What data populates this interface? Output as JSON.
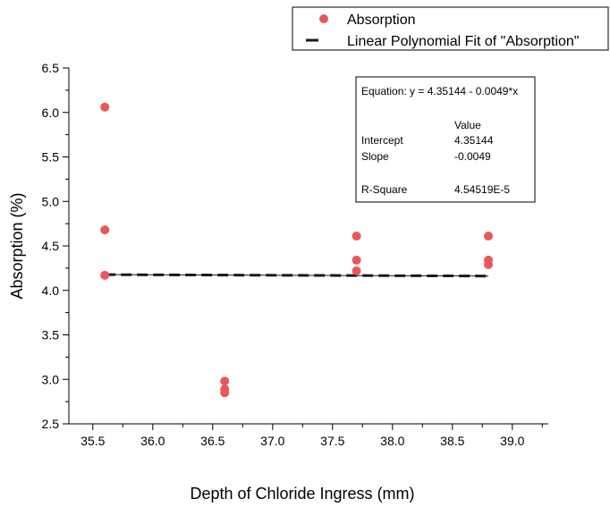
{
  "chart_data": {
    "type": "scatter",
    "xlabel": "Depth of Chloride Ingress (mm)",
    "ylabel": "Absorption (%)",
    "xlim": [
      35.3,
      39.3
    ],
    "ylim": [
      2.5,
      6.5
    ],
    "xticks": [
      "35.5",
      "36.0",
      "36.5",
      "37.0",
      "37.5",
      "38.0",
      "38.5",
      "39.0"
    ],
    "yticks": [
      "2.5",
      "3.0",
      "3.5",
      "4.0",
      "4.5",
      "5.0",
      "5.5",
      "6.0",
      "6.5"
    ],
    "grid": false,
    "legend_position": "top-right",
    "legend": [
      {
        "label": "Absorption",
        "marker": "circle",
        "color": "#e8585b"
      },
      {
        "label": "Linear Polynomial Fit of \"Absorption\"",
        "marker": "dash",
        "color": "#1a1a1a"
      }
    ],
    "series": [
      {
        "name": "Absorption",
        "color": "#e8585b",
        "x": [
          35.6,
          35.6,
          35.6,
          36.6,
          36.6,
          36.6,
          37.7,
          37.7,
          37.7,
          38.8,
          38.8,
          38.8
        ],
        "y": [
          6.06,
          4.68,
          4.17,
          2.98,
          2.89,
          2.85,
          4.61,
          4.34,
          4.22,
          4.61,
          4.34,
          4.29
        ]
      }
    ],
    "fit": {
      "name": "Linear Polynomial Fit of \"Absorption\"",
      "color": "#1a1a1a",
      "intercept": 4.35144,
      "slope": -0.0049,
      "x_range": [
        35.6,
        38.8
      ]
    },
    "stats_box": {
      "equation": "Equation: y = 4.35144 - 0.0049*x",
      "header": "Value",
      "rows": [
        {
          "label": "Intercept",
          "value": "4.35144"
        },
        {
          "label": "Slope",
          "value": "-0.0049"
        },
        {
          "label": "R-Square",
          "value": "4.54519E-5"
        }
      ]
    }
  }
}
